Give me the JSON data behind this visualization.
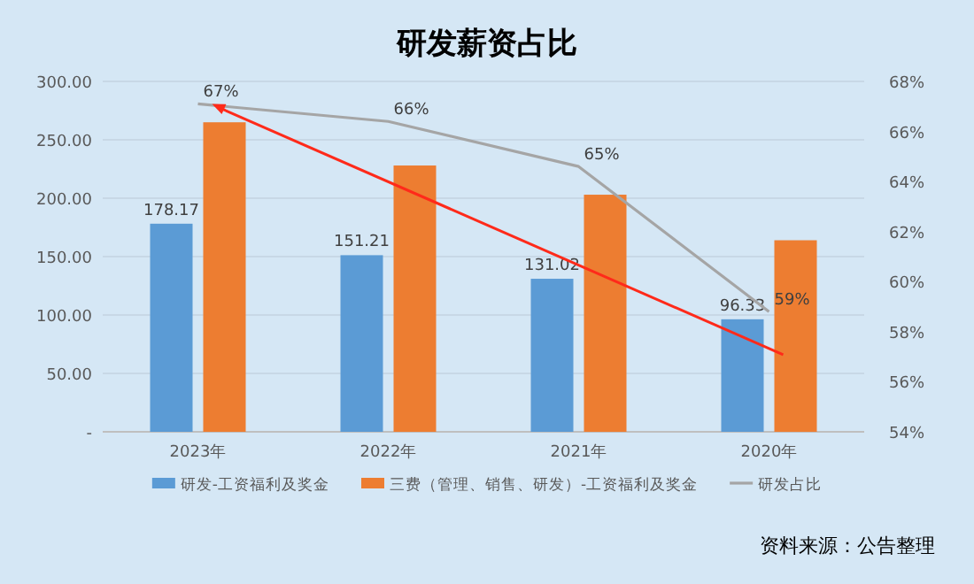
{
  "chart_data": {
    "type": "bar",
    "title": "研发薪资占比",
    "categories": [
      "2023年",
      "2022年",
      "2021年",
      "2020年"
    ],
    "series": [
      {
        "name": "研发-工资福利及奖金",
        "color": "#5b9bd5",
        "values": [
          178.17,
          151.21,
          131.02,
          96.33
        ],
        "value_labels": [
          "178.17",
          "151.21",
          "131.02",
          "96.33"
        ]
      },
      {
        "name": "三费（管理、销售、研发）-工资福利及奖金",
        "color": "#ed7d31",
        "values": [
          265,
          228,
          203,
          164
        ]
      },
      {
        "name": "研发占比",
        "type": "line",
        "axis": "y2",
        "color": "#a5a5a5",
        "values": [
          67.1,
          66.4,
          64.6,
          58.8
        ],
        "value_labels": [
          "67%",
          "66%",
          "65%",
          "59%"
        ]
      }
    ],
    "ylim": [
      0,
      300
    ],
    "yticks": [
      {
        "value": 0,
        "label": "-"
      },
      {
        "value": 50,
        "label": "50.00"
      },
      {
        "value": 100,
        "label": "100.00"
      },
      {
        "value": 150,
        "label": "150.00"
      },
      {
        "value": 200,
        "label": "200.00"
      },
      {
        "value": 250,
        "label": "250.00"
      },
      {
        "value": 300,
        "label": "300.00"
      }
    ],
    "y2lim": [
      54,
      68
    ],
    "y2ticks": [
      {
        "value": 54,
        "label": "54%"
      },
      {
        "value": 56,
        "label": "56%"
      },
      {
        "value": 58,
        "label": "58%"
      },
      {
        "value": 60,
        "label": "60%"
      },
      {
        "value": 62,
        "label": "62%"
      },
      {
        "value": 64,
        "label": "64%"
      },
      {
        "value": 66,
        "label": "66%"
      },
      {
        "value": 68,
        "label": "68%"
      }
    ],
    "grid": "y",
    "legend": "bottom",
    "marker": "none",
    "annotations": [
      "资料来源：公告整理"
    ]
  }
}
